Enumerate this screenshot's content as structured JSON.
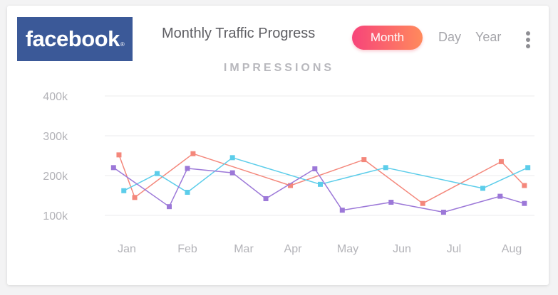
{
  "widget": {
    "logo_text": "facebook",
    "logo_trademark": "®",
    "title": "Monthly Traffic Progress",
    "tabs": {
      "month": "Month",
      "day": "Day",
      "year": "Year"
    },
    "active_tab": "Month"
  },
  "colors": {
    "brand": "#3b5998",
    "button_gradient": [
      "#f7447a",
      "#ff8a5c"
    ],
    "series_coral": "#f4877b",
    "series_blue": "#5ccdea",
    "series_purple": "#9c78d8",
    "grid": "#ebebee"
  },
  "chart_data": {
    "type": "line",
    "title": "IMPRESSIONS",
    "xlabel": "",
    "ylabel": "",
    "x_ticks": [
      "Jan",
      "Feb",
      "Mar",
      "Apr",
      "May",
      "Jun",
      "Jul",
      "Aug"
    ],
    "y_ticks": [
      "100k",
      "200k",
      "300k",
      "400k"
    ],
    "ylim": [
      80000,
      410000
    ],
    "grid": true,
    "series": [
      {
        "color": "#f4877b",
        "points": [
          {
            "x": 0.87,
            "y": 252000
          },
          {
            "x": 1.13,
            "y": 145000
          },
          {
            "x": 2.1,
            "y": 255000
          },
          {
            "x": 3.95,
            "y": 175000
          },
          {
            "x": 5.3,
            "y": 240000
          },
          {
            "x": 6.4,
            "y": 130000
          },
          {
            "x": 7.82,
            "y": 235000
          },
          {
            "x": 8.22,
            "y": 175000
          }
        ]
      },
      {
        "color": "#5ccdea",
        "points": [
          {
            "x": 0.95,
            "y": 162000
          },
          {
            "x": 1.5,
            "y": 205000
          },
          {
            "x": 2.0,
            "y": 158000
          },
          {
            "x": 2.8,
            "y": 245000
          },
          {
            "x": 4.5,
            "y": 178000
          },
          {
            "x": 5.7,
            "y": 220000
          },
          {
            "x": 7.5,
            "y": 168000
          },
          {
            "x": 8.28,
            "y": 220000
          }
        ]
      },
      {
        "color": "#9c78d8",
        "points": [
          {
            "x": 0.78,
            "y": 220000
          },
          {
            "x": 1.7,
            "y": 122000
          },
          {
            "x": 2.0,
            "y": 218000
          },
          {
            "x": 2.8,
            "y": 207000
          },
          {
            "x": 3.45,
            "y": 142000
          },
          {
            "x": 4.4,
            "y": 217000
          },
          {
            "x": 4.9,
            "y": 113000
          },
          {
            "x": 5.8,
            "y": 133000
          },
          {
            "x": 6.8,
            "y": 108000
          },
          {
            "x": 7.8,
            "y": 148000
          },
          {
            "x": 8.22,
            "y": 130000
          }
        ]
      }
    ]
  }
}
